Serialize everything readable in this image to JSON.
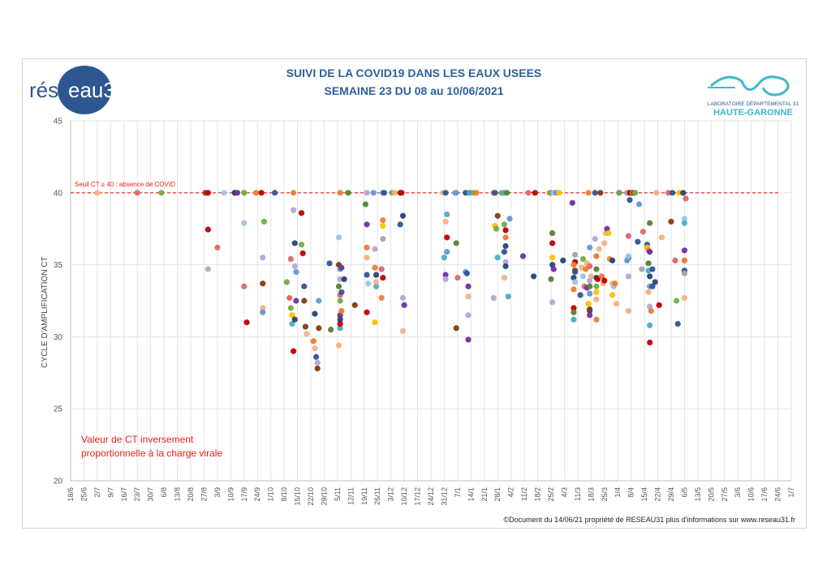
{
  "header": {
    "title_line1": "SUIVI DE LA COVID19 DANS LES EAUX USEES",
    "title_line2": "SEMAINE 23 DU 08 au 10/06/2021",
    "logo_left_text_a": "rés",
    "logo_left_text_b": "eau31",
    "logo_right_line1": "LABORATOIRE DÉPARTEMENTAL 31",
    "logo_right_line2": "HAUTE-GARONNE",
    "logo_right_mark": "eva"
  },
  "annotation": {
    "line1": "Valeur de CT inversement",
    "line2": "proportionnelle à la charge virale"
  },
  "footer": {
    "copyright": "©Document du 14/06/21 propriété de RESEAU31 plus d'informations sur www.reseau31.fr"
  },
  "chart_data": {
    "type": "scatter",
    "ylabel": "CYCLE D'AMPLIFICATION CT",
    "ylim": [
      20,
      45
    ],
    "yticks": [
      20,
      25,
      30,
      35,
      40,
      45
    ],
    "threshold": {
      "value": 40,
      "label": "Seuil CT ≥ 40 : absence de COVID",
      "color": "#e8211b"
    },
    "x_ticks": [
      "18/6",
      "25/6",
      "2/7",
      "9/7",
      "16/7",
      "23/7",
      "30/7",
      "6/8",
      "13/8",
      "20/8",
      "27/8",
      "3/9",
      "10/9",
      "17/9",
      "24/9",
      "1/10",
      "8/10",
      "15/10",
      "22/10",
      "29/10",
      "5/11",
      "12/11",
      "19/11",
      "26/11",
      "3/12",
      "10/12",
      "17/12",
      "24/12",
      "31/12",
      "7/1",
      "14/1",
      "21/1",
      "28/1",
      "4/2",
      "11/2",
      "18/2",
      "25/2",
      "4/3",
      "11/3",
      "18/3",
      "25/3",
      "1/4",
      "8/4",
      "15/4",
      "22/4",
      "29/4",
      "6/5",
      "13/5",
      "20/5",
      "27/5",
      "3/6",
      "10/6",
      "17/6",
      "24/6",
      "1/7"
    ],
    "grid": true,
    "palette": [
      "#5b9bd5",
      "#ed7d31",
      "#a5a5a5",
      "#2f5597",
      "#c00000",
      "#70ad47",
      "#7030a0",
      "#f4b183",
      "#9dc3e6",
      "#833c0b",
      "#b4a7d6",
      "#548235",
      "#264478",
      "#e06666",
      "#ffc000",
      "#4bacc6"
    ],
    "points": [
      [
        2,
        40,
        7
      ],
      [
        5,
        40,
        13
      ],
      [
        6.8,
        40,
        5
      ],
      [
        10.1,
        40,
        9
      ],
      [
        10.3,
        40,
        4
      ],
      [
        10.3,
        37.45,
        4
      ],
      [
        10.3,
        34.7,
        10
      ],
      [
        11,
        36.2,
        13
      ],
      [
        11.5,
        40,
        8
      ],
      [
        12.3,
        40,
        9
      ],
      [
        12.3,
        40,
        12
      ],
      [
        12.5,
        40,
        6
      ],
      [
        13,
        40,
        7
      ],
      [
        13,
        40,
        5
      ],
      [
        13,
        37.9,
        8
      ],
      [
        13,
        33.5,
        13
      ],
      [
        13.2,
        31,
        4
      ],
      [
        13.9,
        40,
        1
      ],
      [
        14.3,
        40,
        4
      ],
      [
        14.5,
        38,
        5
      ],
      [
        14.4,
        35.5,
        10
      ],
      [
        14.4,
        33.7,
        9
      ],
      [
        14.4,
        32,
        7
      ],
      [
        14.4,
        31.7,
        0
      ],
      [
        15.3,
        40,
        3
      ],
      [
        16.2,
        33.8,
        5
      ],
      [
        16.4,
        32.7,
        13
      ],
      [
        16.5,
        35.4,
        13
      ],
      [
        16.5,
        32,
        5
      ],
      [
        16.6,
        31.5,
        14
      ],
      [
        16.6,
        30.9,
        15
      ],
      [
        16.7,
        29,
        4
      ],
      [
        16.7,
        40,
        1
      ],
      [
        16.7,
        38.8,
        10
      ],
      [
        16.8,
        36.5,
        12
      ],
      [
        16.8,
        34.9,
        10
      ],
      [
        16.9,
        34.5,
        0
      ],
      [
        16.9,
        32.5,
        6
      ],
      [
        16.8,
        31.2,
        12
      ],
      [
        17.3,
        38.6,
        4
      ],
      [
        17.3,
        36.4,
        5
      ],
      [
        17.4,
        35.8,
        4
      ],
      [
        17.5,
        33.5,
        3
      ],
      [
        17.5,
        32.5,
        9
      ],
      [
        17.6,
        30.7,
        9
      ],
      [
        17.7,
        30.2,
        7
      ],
      [
        18.3,
        31.6,
        12
      ],
      [
        18.2,
        29.7,
        1
      ],
      [
        18.3,
        29.2,
        7
      ],
      [
        18.4,
        28.6,
        3
      ],
      [
        18.5,
        28.2,
        10
      ],
      [
        18.5,
        27.8,
        9
      ],
      [
        18.6,
        32.5,
        0
      ],
      [
        18.6,
        30.6,
        9
      ],
      [
        19.4,
        35.1,
        3
      ],
      [
        19.5,
        30.5,
        11
      ],
      [
        20.2,
        40,
        1
      ],
      [
        20.1,
        36.9,
        8
      ],
      [
        20.1,
        35,
        9
      ],
      [
        20.2,
        34.7,
        0
      ],
      [
        20.2,
        34,
        10
      ],
      [
        20.1,
        33.5,
        11
      ],
      [
        20.2,
        32.9,
        13
      ],
      [
        20.2,
        32.5,
        5
      ],
      [
        20.2,
        31.5,
        6
      ],
      [
        20.2,
        30.6,
        15
      ],
      [
        20.1,
        29.4,
        7
      ],
      [
        20.3,
        33.1,
        3
      ],
      [
        20.2,
        31.2,
        12
      ],
      [
        20.2,
        30.9,
        4
      ],
      [
        20.3,
        31.8,
        1
      ],
      [
        20.3,
        34.8,
        6
      ],
      [
        20.5,
        34,
        12
      ],
      [
        20.8,
        40,
        11
      ],
      [
        21.3,
        32.2,
        9
      ],
      [
        22.2,
        40,
        10
      ],
      [
        22.1,
        39.2,
        11
      ],
      [
        22.2,
        37.8,
        6
      ],
      [
        22.2,
        36.2,
        1
      ],
      [
        22.2,
        35.5,
        7
      ],
      [
        22.2,
        34.3,
        3
      ],
      [
        22.3,
        33.7,
        8
      ],
      [
        22.2,
        31.7,
        4
      ],
      [
        22.7,
        40,
        0
      ],
      [
        22.8,
        36.1,
        10
      ],
      [
        22.8,
        34.8,
        1
      ],
      [
        22.9,
        34.3,
        12
      ],
      [
        22.9,
        33.5,
        15
      ],
      [
        22.8,
        31,
        14
      ],
      [
        22.9,
        33.8,
        7
      ],
      [
        23.4,
        40,
        0
      ],
      [
        23.5,
        40,
        3
      ],
      [
        23.4,
        38.1,
        1
      ],
      [
        23.4,
        37.7,
        14
      ],
      [
        23.4,
        36.8,
        2
      ],
      [
        23.3,
        34.7,
        13
      ],
      [
        23.4,
        34.1,
        4
      ],
      [
        23.3,
        32.7,
        1
      ],
      [
        24.1,
        40,
        5
      ],
      [
        24.3,
        40,
        7
      ],
      [
        24.7,
        40,
        9
      ],
      [
        24.8,
        40,
        4
      ],
      [
        24.9,
        38.4,
        12
      ],
      [
        24.7,
        37.8,
        3
      ],
      [
        24.9,
        32.7,
        10
      ],
      [
        25,
        32.2,
        6
      ],
      [
        24.9,
        30.4,
        7
      ],
      [
        27.9,
        40,
        7
      ],
      [
        28.1,
        40,
        3
      ],
      [
        28.2,
        38.5,
        15
      ],
      [
        28.1,
        38,
        7
      ],
      [
        28.2,
        36.9,
        4
      ],
      [
        28,
        35.5,
        15
      ],
      [
        28.1,
        34.3,
        6
      ],
      [
        28.1,
        34,
        10
      ],
      [
        28.2,
        35.9,
        0
      ],
      [
        28.8,
        40,
        2
      ],
      [
        28.9,
        40,
        0
      ],
      [
        28.9,
        36.5,
        11
      ],
      [
        28.9,
        30.6,
        9
      ],
      [
        29,
        34.1,
        13
      ],
      [
        29.6,
        40,
        3
      ],
      [
        29.6,
        34.5,
        0
      ],
      [
        29.7,
        34.4,
        3
      ],
      [
        29.8,
        33.5,
        6
      ],
      [
        29.8,
        32.8,
        7
      ],
      [
        29.8,
        31.5,
        10
      ],
      [
        29.8,
        29.8,
        6
      ],
      [
        29.9,
        40,
        12
      ],
      [
        29.9,
        40,
        15
      ],
      [
        30.2,
        40,
        5
      ],
      [
        30.4,
        40,
        1
      ],
      [
        31.7,
        40,
        13
      ],
      [
        31.8,
        40,
        3
      ],
      [
        31.8,
        37.7,
        14
      ],
      [
        31.9,
        37.5,
        5
      ],
      [
        32,
        38.4,
        9
      ],
      [
        32,
        35.5,
        15
      ],
      [
        31.7,
        32.7,
        10
      ],
      [
        32.3,
        40,
        5
      ],
      [
        32.5,
        40,
        0
      ],
      [
        32.5,
        37.8,
        5
      ],
      [
        32.6,
        37.4,
        4
      ],
      [
        32.6,
        36.9,
        1
      ],
      [
        32.6,
        36.3,
        12
      ],
      [
        32.5,
        35.9,
        3
      ],
      [
        32.6,
        35.2,
        10
      ],
      [
        32.6,
        34.9,
        12
      ],
      [
        32.5,
        34.1,
        7
      ],
      [
        32.7,
        40,
        11
      ],
      [
        32.8,
        32.8,
        15
      ],
      [
        32.9,
        38.2,
        0
      ],
      [
        33.9,
        35.6,
        6
      ],
      [
        34.3,
        40,
        13
      ],
      [
        34.8,
        40,
        4
      ],
      [
        34.7,
        34.2,
        12
      ],
      [
        35.9,
        40,
        1
      ],
      [
        36,
        40,
        5
      ],
      [
        36.1,
        37.2,
        11
      ],
      [
        36.1,
        35.5,
        14
      ],
      [
        36.1,
        35,
        12
      ],
      [
        36.2,
        34.7,
        6
      ],
      [
        36,
        34,
        11
      ],
      [
        36.1,
        32.4,
        10
      ],
      [
        36.1,
        36.5,
        4
      ],
      [
        36.2,
        40,
        8
      ],
      [
        36.4,
        40,
        0
      ],
      [
        36.6,
        40,
        14
      ],
      [
        36.9,
        35.3,
        12
      ],
      [
        37.6,
        39.3,
        6
      ],
      [
        37.8,
        35.7,
        2
      ],
      [
        37.8,
        35.2,
        4
      ],
      [
        37.7,
        35,
        1
      ],
      [
        37.8,
        34.6,
        9
      ],
      [
        37.7,
        34.1,
        12
      ],
      [
        37.8,
        33.8,
        8
      ],
      [
        37.7,
        33.3,
        1
      ],
      [
        37.7,
        32,
        4
      ],
      [
        37.7,
        31.7,
        11
      ],
      [
        37.7,
        31.2,
        15
      ],
      [
        37.8,
        34.5,
        3
      ],
      [
        38.2,
        32.9,
        3
      ],
      [
        38.3,
        34.8,
        7
      ],
      [
        38.4,
        35.4,
        5
      ],
      [
        38.4,
        34.2,
        8
      ],
      [
        38.5,
        33.5,
        13
      ],
      [
        38.6,
        34.7,
        1
      ],
      [
        38.7,
        33.4,
        6
      ],
      [
        38.7,
        35.1,
        7
      ],
      [
        38.8,
        40,
        1
      ],
      [
        38.9,
        36.2,
        0
      ],
      [
        38.9,
        34.9,
        13
      ],
      [
        38.9,
        33.9,
        10
      ],
      [
        38.9,
        33.5,
        11
      ],
      [
        38.9,
        33,
        0
      ],
      [
        38.8,
        32.3,
        14
      ],
      [
        38.9,
        31.8,
        3
      ],
      [
        38.9,
        31.5,
        6
      ],
      [
        38.9,
        31.9,
        9
      ],
      [
        39,
        34.2,
        7
      ],
      [
        39.3,
        40,
        3
      ],
      [
        39.3,
        36.8,
        10
      ],
      [
        39.4,
        35.6,
        1
      ],
      [
        39.4,
        34.7,
        11
      ],
      [
        39.4,
        34.1,
        12
      ],
      [
        39.4,
        33.5,
        5
      ],
      [
        39.4,
        33.1,
        14
      ],
      [
        39.4,
        32.6,
        7
      ],
      [
        39.4,
        31.2,
        1
      ],
      [
        39.5,
        34,
        4
      ],
      [
        39.6,
        36.1,
        7
      ],
      [
        39.7,
        40,
        9
      ],
      [
        39.8,
        34.2,
        1
      ],
      [
        39.9,
        33.7,
        7
      ],
      [
        40,
        33.9,
        4
      ],
      [
        40,
        36.5,
        7
      ],
      [
        40.1,
        37.2,
        7
      ],
      [
        40.2,
        37.5,
        6
      ],
      [
        40.3,
        37.2,
        14
      ],
      [
        40.4,
        35.4,
        1
      ],
      [
        40.6,
        33.7,
        7
      ],
      [
        40.6,
        32.9,
        14
      ],
      [
        40.6,
        35.3,
        12
      ],
      [
        40.7,
        33.5,
        8
      ],
      [
        40.8,
        33.7,
        1
      ],
      [
        40.9,
        32.3,
        7
      ],
      [
        41.1,
        40,
        3
      ],
      [
        41.1,
        40,
        5
      ],
      [
        41.7,
        40,
        0
      ],
      [
        41.8,
        40,
        7
      ],
      [
        41.9,
        40,
        12
      ],
      [
        41.9,
        40,
        4
      ],
      [
        41.8,
        37,
        13
      ],
      [
        41.8,
        35.5,
        12
      ],
      [
        41.7,
        35.3,
        0
      ],
      [
        41.8,
        35.6,
        8
      ],
      [
        41.8,
        34.2,
        10
      ],
      [
        41.8,
        31.8,
        7
      ],
      [
        41.9,
        39.5,
        3
      ],
      [
        42.1,
        40,
        6
      ],
      [
        42.1,
        40,
        1
      ],
      [
        42.2,
        40,
        9
      ],
      [
        42.3,
        40,
        5
      ],
      [
        42.5,
        36.6,
        3
      ],
      [
        42.6,
        39.2,
        0
      ],
      [
        42.8,
        34.7,
        2
      ],
      [
        42.9,
        37.3,
        13
      ],
      [
        43.2,
        36.4,
        3
      ],
      [
        43.2,
        36.2,
        14
      ],
      [
        43.3,
        36,
        1
      ],
      [
        43.4,
        35.9,
        6
      ],
      [
        43.3,
        35.1,
        11
      ],
      [
        43.3,
        34.6,
        15
      ],
      [
        43.4,
        34.2,
        12
      ],
      [
        43.4,
        33.5,
        0
      ],
      [
        43.3,
        33.1,
        7
      ],
      [
        43.4,
        32.1,
        10
      ],
      [
        43.5,
        31.8,
        1
      ],
      [
        43.4,
        30.8,
        15
      ],
      [
        43.4,
        29.6,
        4
      ],
      [
        43.4,
        37.9,
        11
      ],
      [
        43.6,
        33.5,
        3
      ],
      [
        43.8,
        33.8,
        12
      ],
      [
        43.6,
        34.7,
        3
      ],
      [
        43.9,
        40,
        7
      ],
      [
        44.1,
        32.2,
        4
      ],
      [
        44.3,
        36.9,
        7
      ],
      [
        44.8,
        40,
        13
      ],
      [
        45,
        38,
        9
      ],
      [
        45.1,
        40,
        3
      ],
      [
        45.3,
        35.3,
        13
      ],
      [
        45.4,
        32.5,
        5
      ],
      [
        45.5,
        30.9,
        3
      ],
      [
        45.6,
        40,
        14
      ],
      [
        45.9,
        40,
        12
      ],
      [
        46,
        38.2,
        8
      ],
      [
        46,
        37.9,
        15
      ],
      [
        46,
        36,
        6
      ],
      [
        46,
        35.3,
        10
      ],
      [
        46,
        34.6,
        3
      ],
      [
        46,
        34.4,
        2
      ],
      [
        46,
        32.7,
        7
      ],
      [
        46,
        35.3,
        1
      ],
      [
        46.1,
        39.6,
        13
      ]
    ]
  }
}
